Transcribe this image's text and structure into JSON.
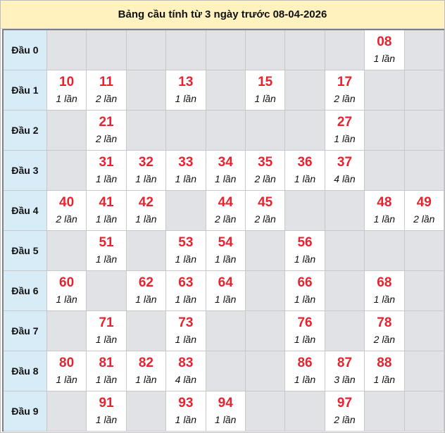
{
  "title": "Bảng cầu tính từ 3 ngày trước 08-04-2026",
  "colors": {
    "number": "#e8232f",
    "header_bg": "#fff2bf",
    "label_bg": "#d8ecf7",
    "empty_bg": "#e1e2e5"
  },
  "rows": [
    {
      "label": "Đầu 0",
      "cells": [
        null,
        null,
        null,
        null,
        null,
        null,
        null,
        null,
        {
          "num": "08",
          "count": "1 lần"
        },
        null
      ]
    },
    {
      "label": "Đầu 1",
      "cells": [
        {
          "num": "10",
          "count": "1 lần"
        },
        {
          "num": "11",
          "count": "2 lần"
        },
        null,
        {
          "num": "13",
          "count": "1 lần"
        },
        null,
        {
          "num": "15",
          "count": "1 lần"
        },
        null,
        {
          "num": "17",
          "count": "2 lần"
        },
        null,
        null
      ]
    },
    {
      "label": "Đầu 2",
      "cells": [
        null,
        {
          "num": "21",
          "count": "2 lần"
        },
        null,
        null,
        null,
        null,
        null,
        {
          "num": "27",
          "count": "1 lần"
        },
        null,
        null
      ]
    },
    {
      "label": "Đầu 3",
      "cells": [
        null,
        {
          "num": "31",
          "count": "1 lần"
        },
        {
          "num": "32",
          "count": "1 lần"
        },
        {
          "num": "33",
          "count": "1 lần"
        },
        {
          "num": "34",
          "count": "1 lần"
        },
        {
          "num": "35",
          "count": "2 lần"
        },
        {
          "num": "36",
          "count": "1 lần"
        },
        {
          "num": "37",
          "count": "4 lần"
        },
        null,
        null
      ]
    },
    {
      "label": "Đầu 4",
      "cells": [
        {
          "num": "40",
          "count": "2 lần"
        },
        {
          "num": "41",
          "count": "1 lần"
        },
        {
          "num": "42",
          "count": "1 lần"
        },
        null,
        {
          "num": "44",
          "count": "2 lần"
        },
        {
          "num": "45",
          "count": "2 lần"
        },
        null,
        null,
        {
          "num": "48",
          "count": "1 lần"
        },
        {
          "num": "49",
          "count": "2 lần"
        }
      ]
    },
    {
      "label": "Đầu 5",
      "cells": [
        null,
        {
          "num": "51",
          "count": "1 lần"
        },
        null,
        {
          "num": "53",
          "count": "1 lần"
        },
        {
          "num": "54",
          "count": "1 lần"
        },
        null,
        {
          "num": "56",
          "count": "1 lần"
        },
        null,
        null,
        null
      ]
    },
    {
      "label": "Đầu 6",
      "cells": [
        {
          "num": "60",
          "count": "1 lần"
        },
        null,
        {
          "num": "62",
          "count": "1 lần"
        },
        {
          "num": "63",
          "count": "1 lần"
        },
        {
          "num": "64",
          "count": "1 lần"
        },
        null,
        {
          "num": "66",
          "count": "1 lần"
        },
        null,
        {
          "num": "68",
          "count": "1 lần"
        },
        null
      ]
    },
    {
      "label": "Đầu 7",
      "cells": [
        null,
        {
          "num": "71",
          "count": "1 lần"
        },
        null,
        {
          "num": "73",
          "count": "1 lần"
        },
        null,
        null,
        {
          "num": "76",
          "count": "1 lần"
        },
        null,
        {
          "num": "78",
          "count": "2 lần"
        },
        null
      ]
    },
    {
      "label": "Đầu 8",
      "cells": [
        {
          "num": "80",
          "count": "1 lần"
        },
        {
          "num": "81",
          "count": "1 lần"
        },
        {
          "num": "82",
          "count": "1 lần"
        },
        {
          "num": "83",
          "count": "4 lần"
        },
        null,
        null,
        {
          "num": "86",
          "count": "1 lần"
        },
        {
          "num": "87",
          "count": "3 lần"
        },
        {
          "num": "88",
          "count": "1 lần"
        },
        null
      ]
    },
    {
      "label": "Đầu 9",
      "cells": [
        null,
        {
          "num": "91",
          "count": "1 lần"
        },
        null,
        {
          "num": "93",
          "count": "1 lần"
        },
        {
          "num": "94",
          "count": "1 lần"
        },
        null,
        null,
        {
          "num": "97",
          "count": "2 lần"
        },
        null,
        null
      ]
    }
  ]
}
